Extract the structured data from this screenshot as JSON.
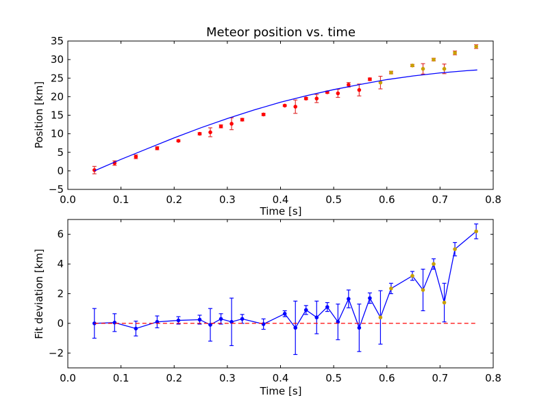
{
  "chart_data": [
    {
      "type": "scatter",
      "title": "Meteor position vs. time",
      "xlabel": "Time [s]",
      "ylabel": "Position [km]",
      "xlim": [
        0.0,
        0.8
      ],
      "ylim": [
        -5,
        35
      ],
      "xticks": [
        "0.0",
        "0.1",
        "0.2",
        "0.3",
        "0.4",
        "0.5",
        "0.6",
        "0.7",
        "0.8"
      ],
      "yticks": [
        "−5",
        "0",
        "5",
        "10",
        "15",
        "20",
        "25",
        "30",
        "35"
      ],
      "grid": false,
      "colors": {
        "fit_line": "#0000ff",
        "errorbar": "#e03030",
        "point_red": "#ff0000",
        "point_gold": "#c8a000"
      },
      "series": [
        {
          "type": "errorbar",
          "x": [
            0.05,
            0.088,
            0.128,
            0.168,
            0.208,
            0.248,
            0.268,
            0.288,
            0.308,
            0.328,
            0.368,
            0.408,
            0.428,
            0.448,
            0.468,
            0.488,
            0.508,
            0.528,
            0.548,
            0.568,
            0.588,
            0.608,
            0.648,
            0.668,
            0.688,
            0.708,
            0.728,
            0.768
          ],
          "y": [
            0.2,
            2.1,
            3.8,
            6.1,
            8.1,
            10.0,
            10.4,
            12.0,
            12.7,
            13.8,
            15.2,
            17.6,
            17.3,
            19.5,
            19.5,
            21.2,
            20.9,
            23.2,
            21.8,
            24.7,
            23.8,
            26.5,
            28.4,
            27.5,
            30.0,
            27.5,
            31.8,
            33.5
          ],
          "yerr": [
            1.0,
            0.6,
            0.5,
            0.4,
            0.25,
            0.3,
            1.2,
            0.4,
            1.6,
            0.35,
            0.3,
            0.2,
            1.8,
            0.3,
            1.1,
            0.3,
            1.1,
            0.6,
            1.6,
            0.35,
            1.7,
            0.35,
            0.3,
            1.4,
            0.35,
            1.3,
            0.5,
            0.5
          ],
          "marker_colors": [
            "red",
            "red",
            "red",
            "red",
            "red",
            "red",
            "red",
            "red",
            "red",
            "red",
            "red",
            "red",
            "red",
            "red",
            "red",
            "red",
            "red",
            "red",
            "red",
            "red",
            "gold",
            "gold",
            "gold",
            "gold",
            "gold",
            "gold",
            "gold",
            "gold"
          ]
        },
        {
          "type": "line",
          "x": [
            0.05,
            0.1,
            0.15,
            0.2,
            0.25,
            0.3,
            0.35,
            0.4,
            0.45,
            0.5,
            0.55,
            0.6,
            0.65,
            0.7,
            0.75,
            0.77
          ],
          "y": [
            0.0,
            3.1,
            6.0,
            8.9,
            11.6,
            14.1,
            16.4,
            18.5,
            20.3,
            21.9,
            23.3,
            24.6,
            25.6,
            26.4,
            27.0,
            27.2
          ]
        }
      ]
    },
    {
      "type": "line",
      "title": "",
      "xlabel": "Time [s]",
      "ylabel": "Fit deviation [km]",
      "xlim": [
        0.0,
        0.8
      ],
      "ylim": [
        -3,
        7
      ],
      "xticks": [
        "0.0",
        "0.1",
        "0.2",
        "0.3",
        "0.4",
        "0.5",
        "0.6",
        "0.7",
        "0.8"
      ],
      "yticks": [
        "−2",
        "0",
        "2",
        "4",
        "6"
      ],
      "grid": false,
      "colors": {
        "line": "#0000ff",
        "zero_line": "#ff0000",
        "point_blue": "#0000ff",
        "point_gold": "#c8a000"
      },
      "series": [
        {
          "type": "errorbar-line",
          "x": [
            0.05,
            0.088,
            0.128,
            0.168,
            0.208,
            0.248,
            0.268,
            0.288,
            0.308,
            0.328,
            0.368,
            0.408,
            0.428,
            0.448,
            0.468,
            0.488,
            0.508,
            0.528,
            0.548,
            0.568,
            0.588,
            0.608,
            0.648,
            0.668,
            0.688,
            0.708,
            0.728,
            0.768
          ],
          "y": [
            0.0,
            0.05,
            -0.35,
            0.1,
            0.2,
            0.25,
            -0.1,
            0.3,
            0.1,
            0.3,
            -0.05,
            0.65,
            -0.3,
            0.9,
            0.4,
            1.1,
            0.1,
            1.65,
            -0.3,
            1.7,
            0.4,
            2.35,
            3.2,
            2.25,
            4.0,
            1.4,
            5.0,
            6.2
          ],
          "yerr": [
            1.0,
            0.6,
            0.5,
            0.4,
            0.25,
            0.3,
            1.1,
            0.35,
            1.6,
            0.3,
            0.35,
            0.2,
            1.8,
            0.3,
            1.1,
            0.3,
            1.2,
            0.6,
            1.6,
            0.35,
            1.8,
            0.35,
            0.3,
            1.4,
            0.35,
            1.3,
            0.45,
            0.5
          ],
          "marker_colors": [
            "blue",
            "blue",
            "blue",
            "blue",
            "blue",
            "blue",
            "blue",
            "blue",
            "blue",
            "blue",
            "blue",
            "blue",
            "blue",
            "blue",
            "blue",
            "blue",
            "blue",
            "blue",
            "blue",
            "blue",
            "gold",
            "gold",
            "gold",
            "gold",
            "gold",
            "gold",
            "gold",
            "gold"
          ]
        },
        {
          "type": "dashed",
          "x": [
            0.05,
            0.77
          ],
          "y": [
            0,
            0
          ]
        }
      ]
    }
  ]
}
